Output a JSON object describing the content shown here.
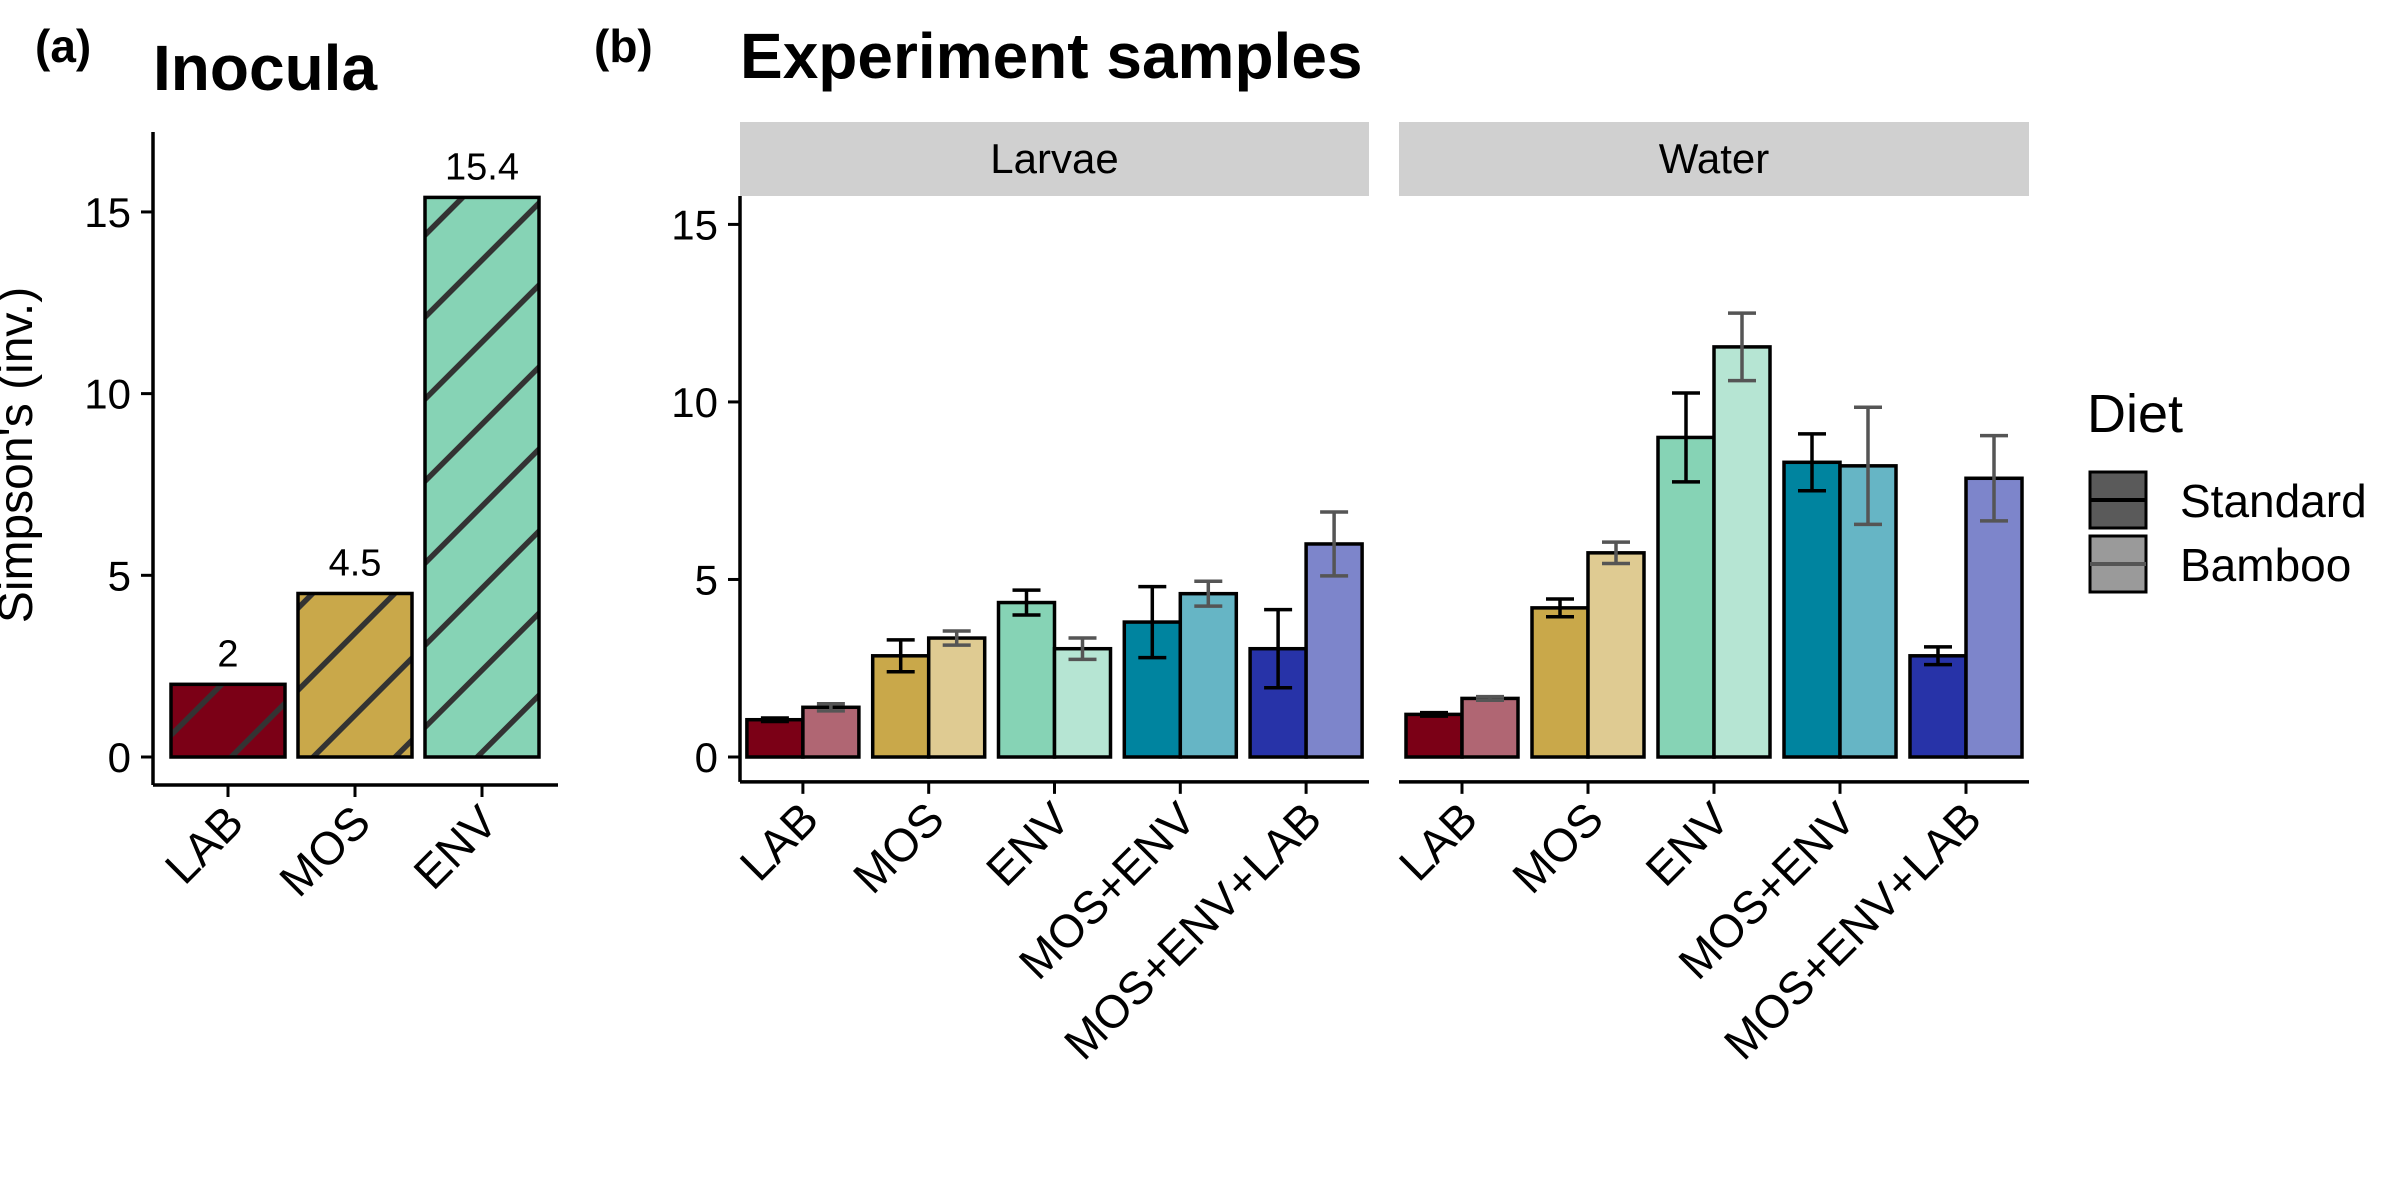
{
  "figure": {
    "panel_a": {
      "letter": "(a)",
      "title": "Inocula"
    },
    "panel_b": {
      "letter": "(b)",
      "title": "Experiment samples"
    },
    "y_axis_label": "Simpson's (inv.)"
  },
  "legend": {
    "title": "Diet",
    "items": [
      {
        "label": "Standard",
        "swatch_fill": "#5a5a5a",
        "line_color": "#000000"
      },
      {
        "label": "Bamboo",
        "swatch_fill": "#9a9a9a",
        "line_color": "#555555"
      }
    ]
  },
  "colors": {
    "LAB": "#7b0016",
    "MOS": "#c9a84a",
    "ENV": "#86d3b5",
    "MOS+ENV": "#00849f",
    "MOS+ENV+LAB": "#2733a8",
    "strip_bg": "#d0d0d0"
  },
  "chart_data": [
    {
      "type": "bar",
      "title": "Inocula",
      "ylabel": "Simpson's (inv.)",
      "ylim": [
        0,
        17.2
      ],
      "yticks": [
        0,
        5,
        10,
        15
      ],
      "categories": [
        "LAB",
        "MOS",
        "ENV"
      ],
      "values": [
        2,
        4.5,
        15.4
      ],
      "value_labels": [
        "2",
        "4.5",
        "15.4"
      ],
      "fill_pattern": "diagonal-hatch"
    },
    {
      "type": "bar",
      "title": "Experiment samples",
      "facets": [
        "Larvae",
        "Water"
      ],
      "ylim": [
        -0.7,
        15.8
      ],
      "yticks": [
        0,
        5,
        10,
        15
      ],
      "categories": [
        "LAB",
        "MOS",
        "ENV",
        "MOS+ENV",
        "MOS+ENV+LAB"
      ],
      "panels": [
        {
          "facet": "Larvae",
          "series": [
            {
              "name": "Standard",
              "values": [
                1.05,
                2.85,
                4.35,
                3.8,
                3.05
              ],
              "error": [
                0.05,
                0.45,
                0.35,
                1.0,
                1.1
              ]
            },
            {
              "name": "Bamboo",
              "values": [
                1.4,
                3.35,
                3.05,
                4.6,
                6.0
              ],
              "error": [
                0.1,
                0.2,
                0.3,
                0.35,
                0.9
              ]
            }
          ]
        },
        {
          "facet": "Water",
          "series": [
            {
              "name": "Standard",
              "values": [
                1.2,
                4.2,
                9.0,
                8.3,
                2.85
              ],
              "error": [
                0.05,
                0.25,
                1.25,
                0.8,
                0.25
              ]
            },
            {
              "name": "Bamboo",
              "values": [
                1.65,
                5.75,
                11.55,
                8.2,
                7.85
              ],
              "error": [
                0.05,
                0.3,
                0.95,
                1.65,
                1.2
              ]
            }
          ]
        }
      ]
    }
  ]
}
